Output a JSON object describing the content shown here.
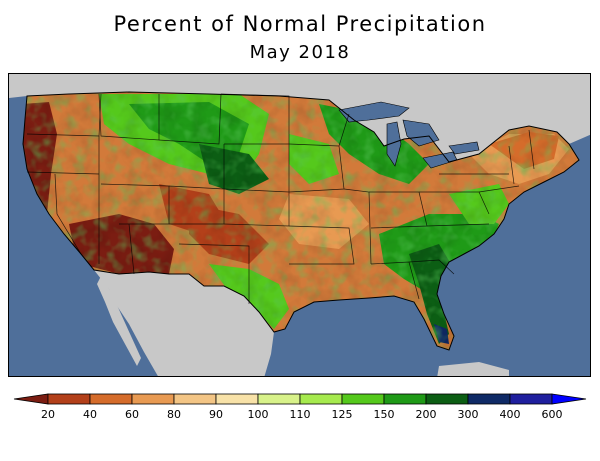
{
  "title": "Percent of Normal Precipitation",
  "subtitle": "May 2018",
  "legend": {
    "labels": [
      "20",
      "40",
      "60",
      "80",
      "90",
      "100",
      "110",
      "125",
      "150",
      "200",
      "300",
      "400",
      "600"
    ],
    "colors": [
      "#7b1d12",
      "#b3401a",
      "#d56c2b",
      "#e89a52",
      "#f3c585",
      "#f8e2a8",
      "#d8f28a",
      "#a6ea4e",
      "#55c91c",
      "#1f9a17",
      "#0c5e14",
      "#0f2a66",
      "#1f1f9e",
      "#0000ff"
    ]
  },
  "colors": {
    "ocean": "#4f6f9a",
    "land_outside": "#c8c8c8",
    "lakes": "#4f6f9a"
  }
}
